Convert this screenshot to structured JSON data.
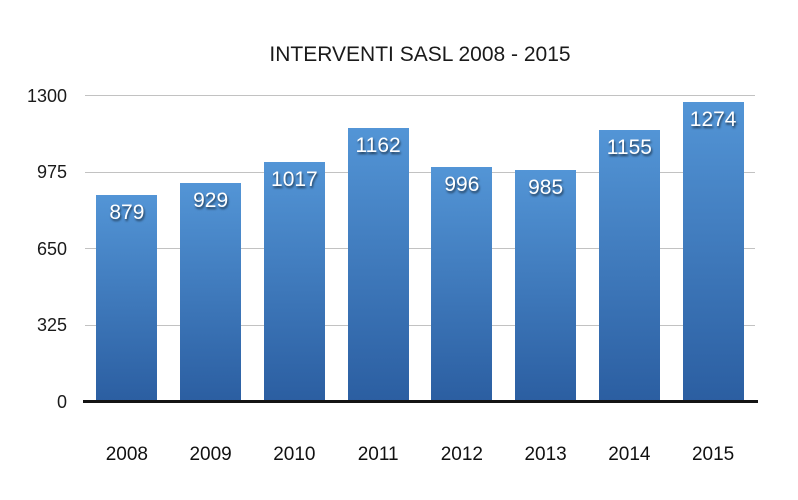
{
  "chart_data": {
    "type": "bar",
    "title": "INTERVENTI SASL 2008 - 2015",
    "categories": [
      "2008",
      "2009",
      "2010",
      "2011",
      "2012",
      "2013",
      "2014",
      "2015"
    ],
    "values": [
      879,
      929,
      1017,
      1162,
      996,
      985,
      1155,
      1274
    ],
    "xlabel": "",
    "ylabel": "",
    "ylim": [
      0,
      1300
    ],
    "yticks": [
      0,
      325,
      650,
      975,
      1300
    ],
    "grid": true,
    "legend": false,
    "bar_labels_position": "inside-top",
    "colors": {
      "bar_gradient_top": "#5395d6",
      "bar_gradient_bottom": "#2b5ea1",
      "gridline": "#c2c2c2",
      "axis_line": "#141414",
      "text": "#1a1a1a",
      "bar_label_text": "#ffffff"
    }
  }
}
